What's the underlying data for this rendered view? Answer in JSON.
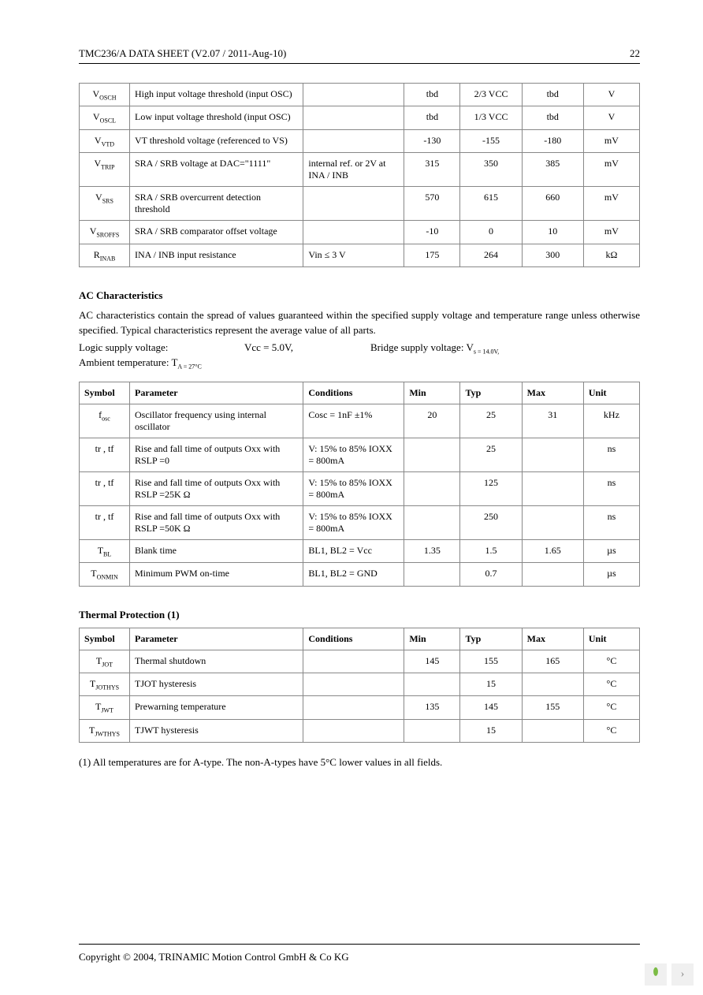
{
  "header": {
    "title": "TMC236/A DATA SHEET (V2.07 / 2011-Aug-10)",
    "page_no": "22"
  },
  "table1": {
    "rows": [
      {
        "sym": "V",
        "sub": "OSCH",
        "param": "High input voltage threshold (input OSC)",
        "cond": "",
        "min": "tbd",
        "typ": "2/3 VCC",
        "max": "tbd",
        "unit": "V"
      },
      {
        "sym": "V",
        "sub": "OSCL",
        "param": "Low input voltage threshold (input OSC)",
        "cond": "",
        "min": "tbd",
        "typ": "1/3 VCC",
        "max": "tbd",
        "unit": "V"
      },
      {
        "sym": "V",
        "sub": "VTD",
        "param": "VT threshold voltage (referenced to VS)",
        "cond": "",
        "min": "-130",
        "typ": "-155",
        "max": "-180",
        "unit": "mV"
      },
      {
        "sym": "V",
        "sub": "TRIP",
        "param": "SRA / SRB voltage at DAC=\"1111\"",
        "cond": "internal ref. or 2V at INA / INB",
        "min": "315",
        "typ": "350",
        "max": "385",
        "unit": "mV"
      },
      {
        "sym": "V",
        "sub": "SRS",
        "param": "SRA / SRB overcurrent detection threshold",
        "cond": "",
        "min": "570",
        "typ": "615",
        "max": "660",
        "unit": "mV"
      },
      {
        "sym": "V",
        "sub": "SROFFS",
        "param": "SRA / SRB comparator offset voltage",
        "cond": "",
        "min": "-10",
        "typ": "0",
        "max": "10",
        "unit": "mV"
      },
      {
        "sym": "R",
        "sub": "INAB",
        "param": "INA / INB input resistance",
        "cond": "Vin ≤ 3 V",
        "min": "175",
        "typ": "264",
        "max": "300",
        "unit": "kΩ"
      }
    ]
  },
  "ac": {
    "title": "AC Characteristics",
    "intro": "AC characteristics contain the spread of values guaranteed within the specified supply voltage and temperature range unless otherwise specified. Typical characteristics represent the average value of all parts.",
    "c1a": "Logic supply voltage:",
    "c1b": "Vcc = 5.0V,",
    "c1c": "Bridge supply voltage: V",
    "c1d": "s = 14.0V,",
    "c2a": "Ambient temperature: T",
    "c2b": "A = 27°C",
    "headers": {
      "sym": "Symbol",
      "param": "Parameter",
      "cond": "Conditions",
      "min": "Min",
      "typ": "Typ",
      "max": "Max",
      "unit": "Unit"
    },
    "rows": [
      {
        "sym": "f",
        "sub": "osc",
        "param": "Oscillator frequency using internal oscillator",
        "cond": "Cosc = 1nF ±1%",
        "min": "20",
        "typ": "25",
        "max": "31",
        "unit": "kHz"
      },
      {
        "sym": "tr , tf",
        "sub": "",
        "param": "Rise and fall time of outputs Oxx with RSLP =0",
        "cond": "V: 15% to 85% IOXX = 800mA",
        "min": "",
        "typ": "25",
        "max": "",
        "unit": "ns"
      },
      {
        "sym": "tr , tf",
        "sub": "",
        "param": "Rise and fall time of outputs Oxx with RSLP =25K Ω",
        "cond": "V: 15% to 85% IOXX = 800mA",
        "min": "",
        "typ": "125",
        "max": "",
        "unit": "ns"
      },
      {
        "sym": "tr , tf",
        "sub": "",
        "param": "Rise and fall time of outputs Oxx with RSLP =50K Ω",
        "cond": "V: 15% to 85% IOXX = 800mA",
        "min": "",
        "typ": "250",
        "max": "",
        "unit": "ns"
      },
      {
        "sym": "T",
        "sub": "BL",
        "param": "Blank time",
        "cond": "BL1, BL2 = Vcc",
        "min": "1.35",
        "typ": "1.5",
        "max": "1.65",
        "unit": "µs"
      },
      {
        "sym": "T",
        "sub": "ONMIN",
        "param": "Minimum PWM on-time",
        "cond": "BL1, BL2 = GND",
        "min": "",
        "typ": "0.7",
        "max": "",
        "unit": "µs"
      }
    ]
  },
  "thermal": {
    "title": "Thermal Protection (1)",
    "headers": {
      "sym": "Symbol",
      "param": "Parameter",
      "cond": "Conditions",
      "min": "Min",
      "typ": "Typ",
      "max": "Max",
      "unit": "Unit"
    },
    "rows": [
      {
        "sym": "T",
        "sub": "JOT",
        "param": "Thermal shutdown",
        "cond": "",
        "min": "145",
        "typ": "155",
        "max": "165",
        "unit": "°C"
      },
      {
        "sym": "T",
        "sub": "JOTHYS",
        "param": "TJOT  hysteresis",
        "cond": "",
        "min": "",
        "typ": "15",
        "max": "",
        "unit": "°C"
      },
      {
        "sym": "T",
        "sub": "JWT",
        "param": "Prewarning temperature",
        "cond": "",
        "min": "135",
        "typ": "145",
        "max": "155",
        "unit": "°C"
      },
      {
        "sym": "T",
        "sub": "JWTHYS",
        "param": "TJWT  hysteresis",
        "cond": "",
        "min": "",
        "typ": "15",
        "max": "",
        "unit": "°C"
      }
    ],
    "note": "(1) All temperatures are for A-type. The non-A-types have 5°C lower values in all fields."
  },
  "footer": {
    "copyright": "Copyright © 2004, TRINAMIC Motion Control GmbH & Co KG"
  },
  "nav": {
    "next": "›"
  }
}
